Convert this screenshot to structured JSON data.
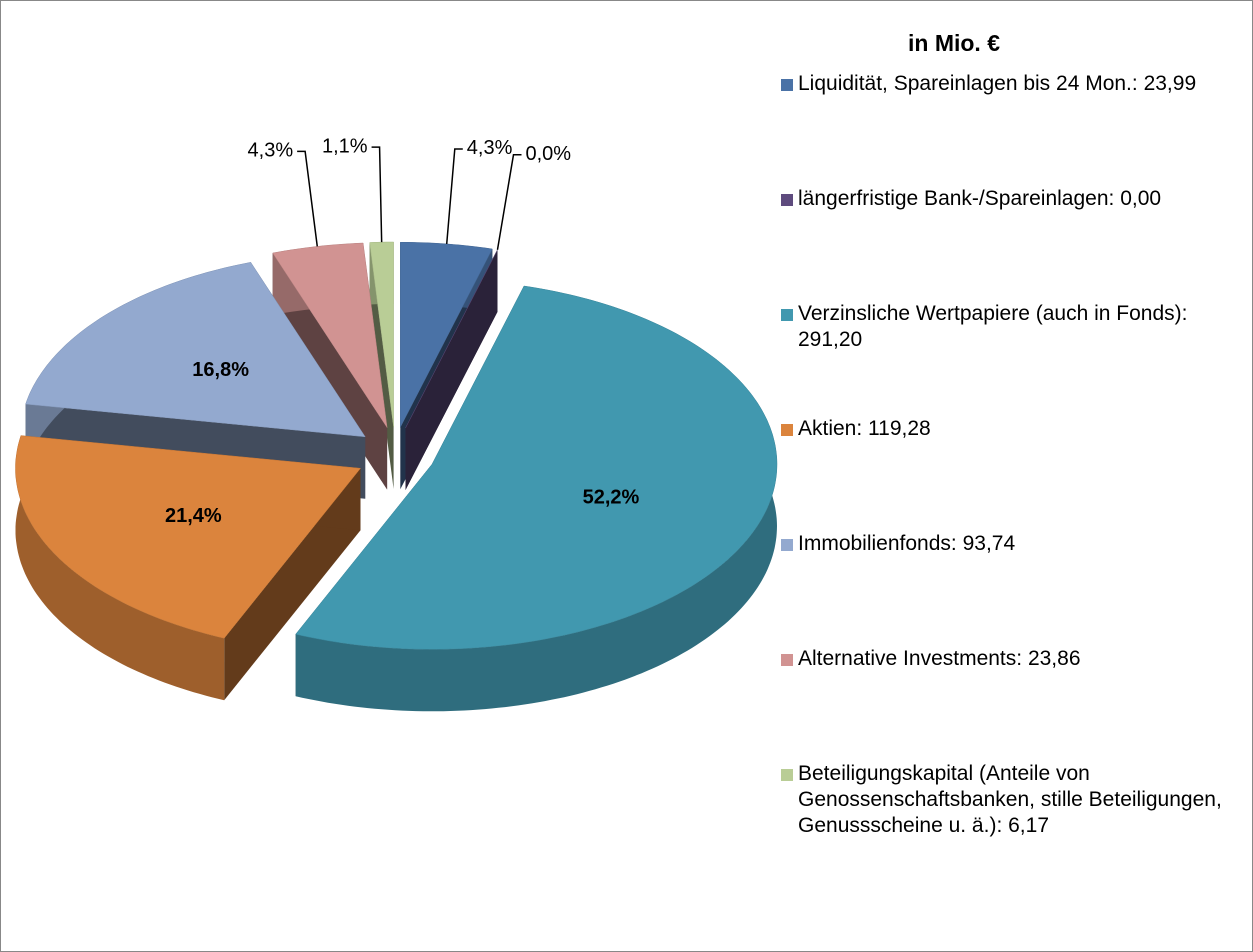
{
  "chart_data": {
    "type": "pie",
    "style": "3d-exploded",
    "legend_title": "in Mio. €",
    "categories": [
      "Liquidität, Spareinlagen bis 24 Mon.:",
      "längerfristige Bank-/Spareinlagen:",
      "Verzinsliche Wertpapiere (auch in Fonds):",
      "Aktien:",
      "Immobilienfonds:",
      "Alternative Investments:",
      "Beteiligungskapital (Anteile von Genossenschaftsbanken, stille Beteiligungen, Genussscheine u. ä.):"
    ],
    "values": [
      23.99,
      0.0,
      291.2,
      119.28,
      93.74,
      23.86,
      6.17
    ],
    "value_labels": [
      "23,99",
      "0,00",
      "291,20",
      "119,28",
      "93,74",
      "23,86",
      "6,17"
    ],
    "percent_labels": [
      "4,3%",
      "0,0%",
      "52,2%",
      "21,4%",
      "16,8%",
      "4,3%",
      "1,1%"
    ],
    "colors": [
      "#4a72a6",
      "#5e4b7e",
      "#4198af",
      "#db843d",
      "#93a9cf",
      "#d19392",
      "#b9cd96"
    ],
    "legend": "right"
  }
}
